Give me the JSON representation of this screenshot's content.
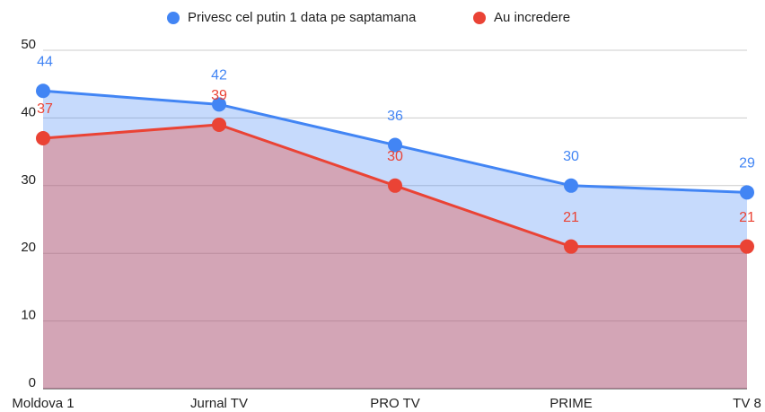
{
  "chart_data": {
    "type": "area",
    "categories": [
      "Moldova 1",
      "Jurnal TV",
      "PRO TV",
      "PRIME",
      "TV 8"
    ],
    "series": [
      {
        "name": "Privesc cel putin 1 data pe saptamana",
        "color": "#4285f4",
        "values": [
          44,
          42,
          36,
          30,
          29
        ]
      },
      {
        "name": "Au incredere",
        "color": "#ea4335",
        "values": [
          37,
          39,
          30,
          21,
          21
        ]
      }
    ],
    "ylim": [
      0,
      50
    ],
    "yticks": [
      0,
      10,
      20,
      30,
      40,
      50
    ],
    "grid": true,
    "legend": "top"
  }
}
